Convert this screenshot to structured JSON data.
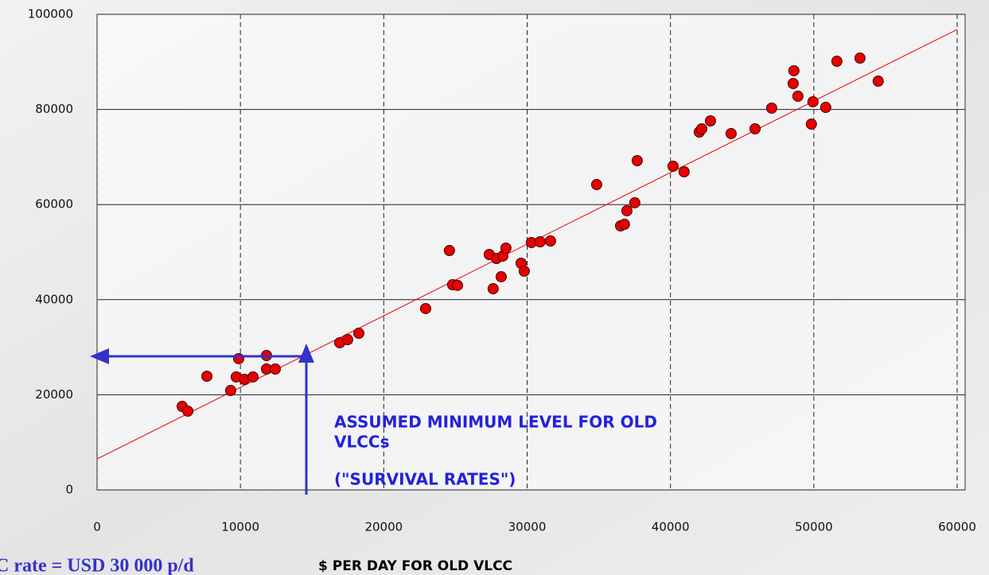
{
  "chart_data": {
    "type": "scatter",
    "x_label": "$ PER DAY FOR OLD VLCC",
    "xlim": [
      0,
      60000
    ],
    "xticks": [
      0,
      10000,
      20000,
      30000,
      40000,
      50000,
      60000
    ],
    "ylim": [
      0,
      100000
    ],
    "yticks": [
      0,
      20000,
      40000,
      60000,
      80000,
      100000
    ],
    "grid": true,
    "series": [
      {
        "color": "#e60000",
        "x": [
          5940,
          6330,
          7660,
          9320,
          9710,
          9880,
          10270,
          10880,
          11820,
          11820,
          12430,
          16930,
          17480,
          18260,
          22920,
          24580,
          24800,
          25140,
          27360,
          27630,
          27860,
          28300,
          28190,
          28520,
          29580,
          29800,
          30300,
          30910,
          31630,
          34850,
          36520,
          36790,
          36960,
          37510,
          37680,
          40180,
          40950,
          42010,
          42180,
          42790,
          44230,
          45900,
          47060,
          48560,
          48610,
          48890,
          49830,
          49940,
          50830,
          51610,
          53220,
          54490
        ],
        "values": [
          17560,
          16560,
          23900,
          20900,
          23750,
          27600,
          23240,
          23750,
          28260,
          25420,
          25420,
          30940,
          31600,
          32940,
          38130,
          50330,
          43140,
          43000,
          49500,
          42300,
          48660,
          49160,
          44820,
          50840,
          47660,
          45990,
          52010,
          52170,
          52340,
          64210,
          55520,
          55850,
          58700,
          60370,
          69230,
          68060,
          66890,
          75250,
          75920,
          77590,
          74920,
          75920,
          80270,
          85450,
          88130,
          82780,
          76920,
          81610,
          80430,
          90130,
          90800,
          85950
        ]
      }
    ],
    "trend": {
      "color": "#e60000",
      "x": [
        0,
        60000
      ],
      "values": [
        6520,
        96820
      ]
    },
    "annotation": [
      "ASSUMED MINIMUM LEVEL FOR OLD",
      "VLCCs",
      "(\"SURVIVAL RATES\")"
    ],
    "footnote": "C rate = USD 30 000 p/d"
  }
}
